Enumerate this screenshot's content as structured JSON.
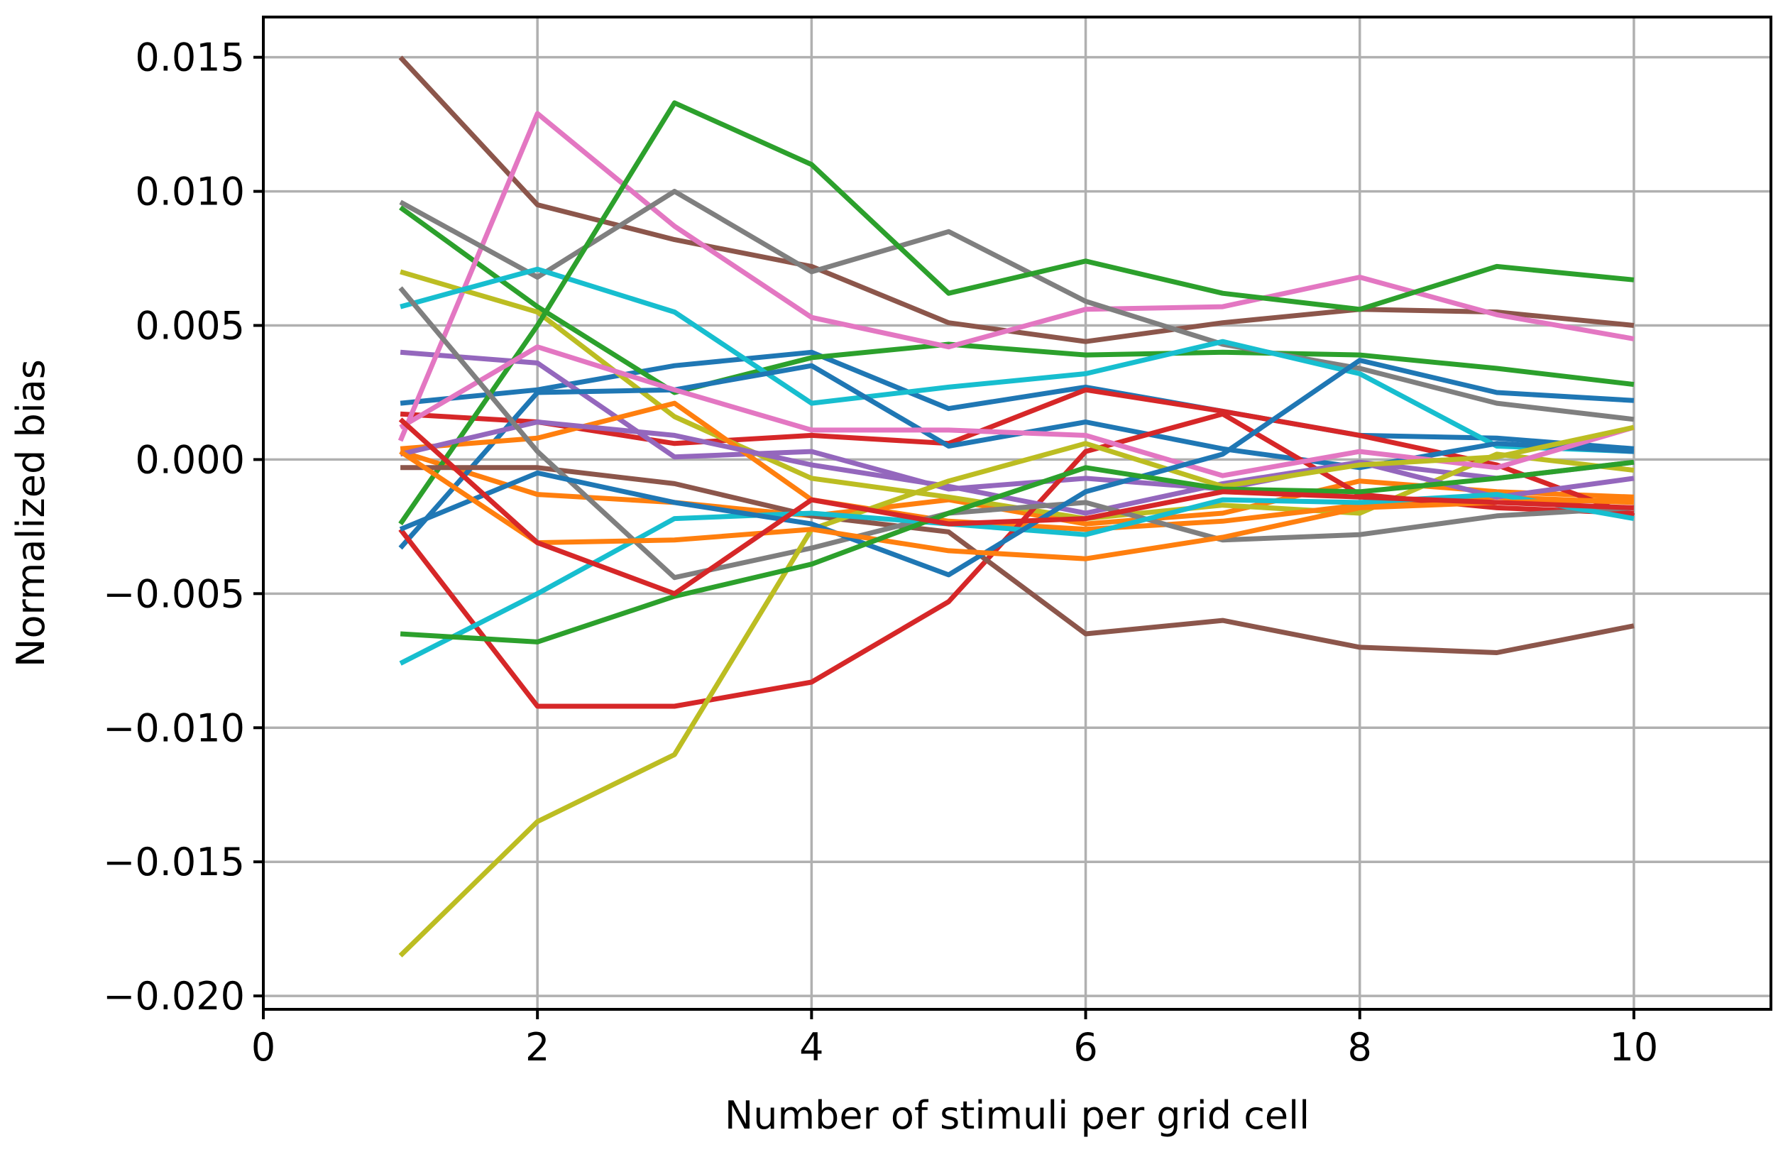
{
  "chart_data": {
    "type": "line",
    "title": "",
    "xlabel": "Number of stimuli per grid cell",
    "ylabel": "Normalized bias",
    "xlim": [
      0,
      11
    ],
    "ylim": [
      -0.0205,
      0.0165
    ],
    "grid": true,
    "legend": "none",
    "x_ticks": [
      0,
      2,
      4,
      6,
      8,
      10
    ],
    "x_tick_labels": [
      "0",
      "2",
      "4",
      "6",
      "8",
      "10"
    ],
    "y_ticks": [
      -0.02,
      -0.015,
      -0.01,
      -0.005,
      0.0,
      0.005,
      0.01,
      0.015
    ],
    "y_tick_labels": [
      "−0.020",
      "−0.015",
      "−0.010",
      "−0.005",
      "0.000",
      "0.005",
      "0.010",
      "0.015"
    ],
    "x": [
      1,
      2,
      3,
      4,
      5,
      6,
      7,
      8,
      9,
      10
    ],
    "series": [
      {
        "color": "#1f77b4",
        "values": [
          0.0021,
          0.0026,
          0.0035,
          0.004,
          0.0019,
          0.0027,
          0.0018,
          0.0009,
          0.0008,
          0.0004
        ]
      },
      {
        "color": "#ff7f0e",
        "values": [
          0.0003,
          -0.0013,
          -0.0016,
          -0.0021,
          -0.0015,
          -0.0024,
          -0.002,
          -0.0008,
          -0.0012,
          -0.0014
        ]
      },
      {
        "color": "#2ca02c",
        "values": [
          0.0094,
          0.0057,
          0.0025,
          0.0038,
          0.0043,
          0.0039,
          0.004,
          0.0039,
          0.0034,
          0.0028
        ]
      },
      {
        "color": "#d62728",
        "values": [
          0.0017,
          0.0014,
          0.0006,
          0.0009,
          0.0006,
          0.0026,
          0.0018,
          0.0009,
          -0.0002,
          -0.0021
        ]
      },
      {
        "color": "#9467bd",
        "values": [
          0.004,
          0.0036,
          0.0001,
          0.0003,
          -0.0011,
          -0.0007,
          -0.0011,
          -0.0001,
          -0.0007,
          -0.0001
        ]
      },
      {
        "color": "#8c564b",
        "values": [
          0.015,
          0.0095,
          0.0082,
          0.0072,
          0.0051,
          0.0044,
          0.0051,
          0.0056,
          0.0055,
          0.005
        ]
      },
      {
        "color": "#e377c2",
        "values": [
          0.0007,
          0.0129,
          0.0087,
          0.0053,
          0.0042,
          0.0056,
          0.0057,
          0.0068,
          0.0054,
          0.0045
        ]
      },
      {
        "color": "#7f7f7f",
        "values": [
          0.0096,
          0.0068,
          0.01,
          0.007,
          0.0085,
          0.0059,
          0.0043,
          0.0034,
          0.0021,
          0.0015
        ]
      },
      {
        "color": "#bcbd22",
        "values": [
          0.007,
          0.0055,
          0.0016,
          -0.0007,
          -0.0014,
          -0.0022,
          -0.0017,
          -0.002,
          0.0002,
          -0.0004
        ]
      },
      {
        "color": "#17becf",
        "values": [
          0.0057,
          0.0071,
          0.0055,
          0.0021,
          0.0027,
          0.0032,
          0.0044,
          0.0032,
          0.0005,
          0.0003
        ]
      },
      {
        "color": "#1f77b4",
        "values": [
          -0.0033,
          0.0025,
          0.0026,
          0.0035,
          0.0005,
          0.0014,
          0.0004,
          -0.0003,
          0.0006,
          0.0003
        ]
      },
      {
        "color": "#ff7f0e",
        "values": [
          0.0004,
          0.0008,
          0.0021,
          -0.0015,
          -0.0023,
          -0.0026,
          -0.0023,
          -0.0017,
          -0.0014,
          -0.0016
        ]
      },
      {
        "color": "#2ca02c",
        "values": [
          -0.0024,
          0.005,
          0.0133,
          0.011,
          0.0062,
          0.0074,
          0.0062,
          0.0056,
          0.0072,
          0.0067
        ]
      },
      {
        "color": "#d62728",
        "values": [
          -0.0026,
          -0.0092,
          -0.0092,
          -0.0083,
          -0.0053,
          0.0003,
          0.0017,
          -0.0013,
          -0.0018,
          -0.002
        ]
      },
      {
        "color": "#9467bd",
        "values": [
          0.0002,
          0.0014,
          0.0009,
          -0.0002,
          -0.001,
          -0.002,
          -0.0009,
          -0.0001,
          -0.0014,
          -0.0007
        ]
      },
      {
        "color": "#8c564b",
        "values": [
          -0.0003,
          -0.0003,
          -0.0009,
          -0.0021,
          -0.0027,
          -0.0065,
          -0.006,
          -0.007,
          -0.0072,
          -0.0062
        ]
      },
      {
        "color": "#e377c2",
        "values": [
          0.0012,
          0.0042,
          0.0026,
          0.0011,
          0.0011,
          0.0009,
          -0.0006,
          0.0003,
          -0.0003,
          0.0012
        ]
      },
      {
        "color": "#7f7f7f",
        "values": [
          0.0064,
          0.0003,
          -0.0044,
          -0.0033,
          -0.002,
          -0.0016,
          -0.003,
          -0.0028,
          -0.0021,
          -0.0018
        ]
      },
      {
        "color": "#bcbd22",
        "values": [
          -0.0185,
          -0.0135,
          -0.011,
          -0.0026,
          -0.0008,
          0.0006,
          -0.001,
          -0.0002,
          0.0001,
          0.0012
        ]
      },
      {
        "color": "#17becf",
        "values": [
          -0.0076,
          -0.005,
          -0.0022,
          -0.002,
          -0.0024,
          -0.0028,
          -0.0015,
          -0.0016,
          -0.0013,
          -0.0022
        ]
      },
      {
        "color": "#1f77b4",
        "values": [
          -0.0026,
          -0.0005,
          -0.0016,
          -0.0024,
          -0.0043,
          -0.0012,
          0.0002,
          0.0037,
          0.0025,
          0.0022
        ]
      },
      {
        "color": "#ff7f0e",
        "values": [
          0.0003,
          -0.0031,
          -0.003,
          -0.0026,
          -0.0034,
          -0.0037,
          -0.0029,
          -0.0018,
          -0.0016,
          -0.0015
        ]
      },
      {
        "color": "#2ca02c",
        "values": [
          -0.0065,
          -0.0068,
          -0.0051,
          -0.0039,
          -0.002,
          -0.0003,
          -0.0011,
          -0.0012,
          -0.0007,
          -0.0001
        ]
      },
      {
        "color": "#d62728",
        "values": [
          0.0015,
          -0.0031,
          -0.005,
          -0.0015,
          -0.0024,
          -0.0022,
          -0.0012,
          -0.0014,
          -0.0016,
          -0.0018
        ]
      }
    ]
  }
}
